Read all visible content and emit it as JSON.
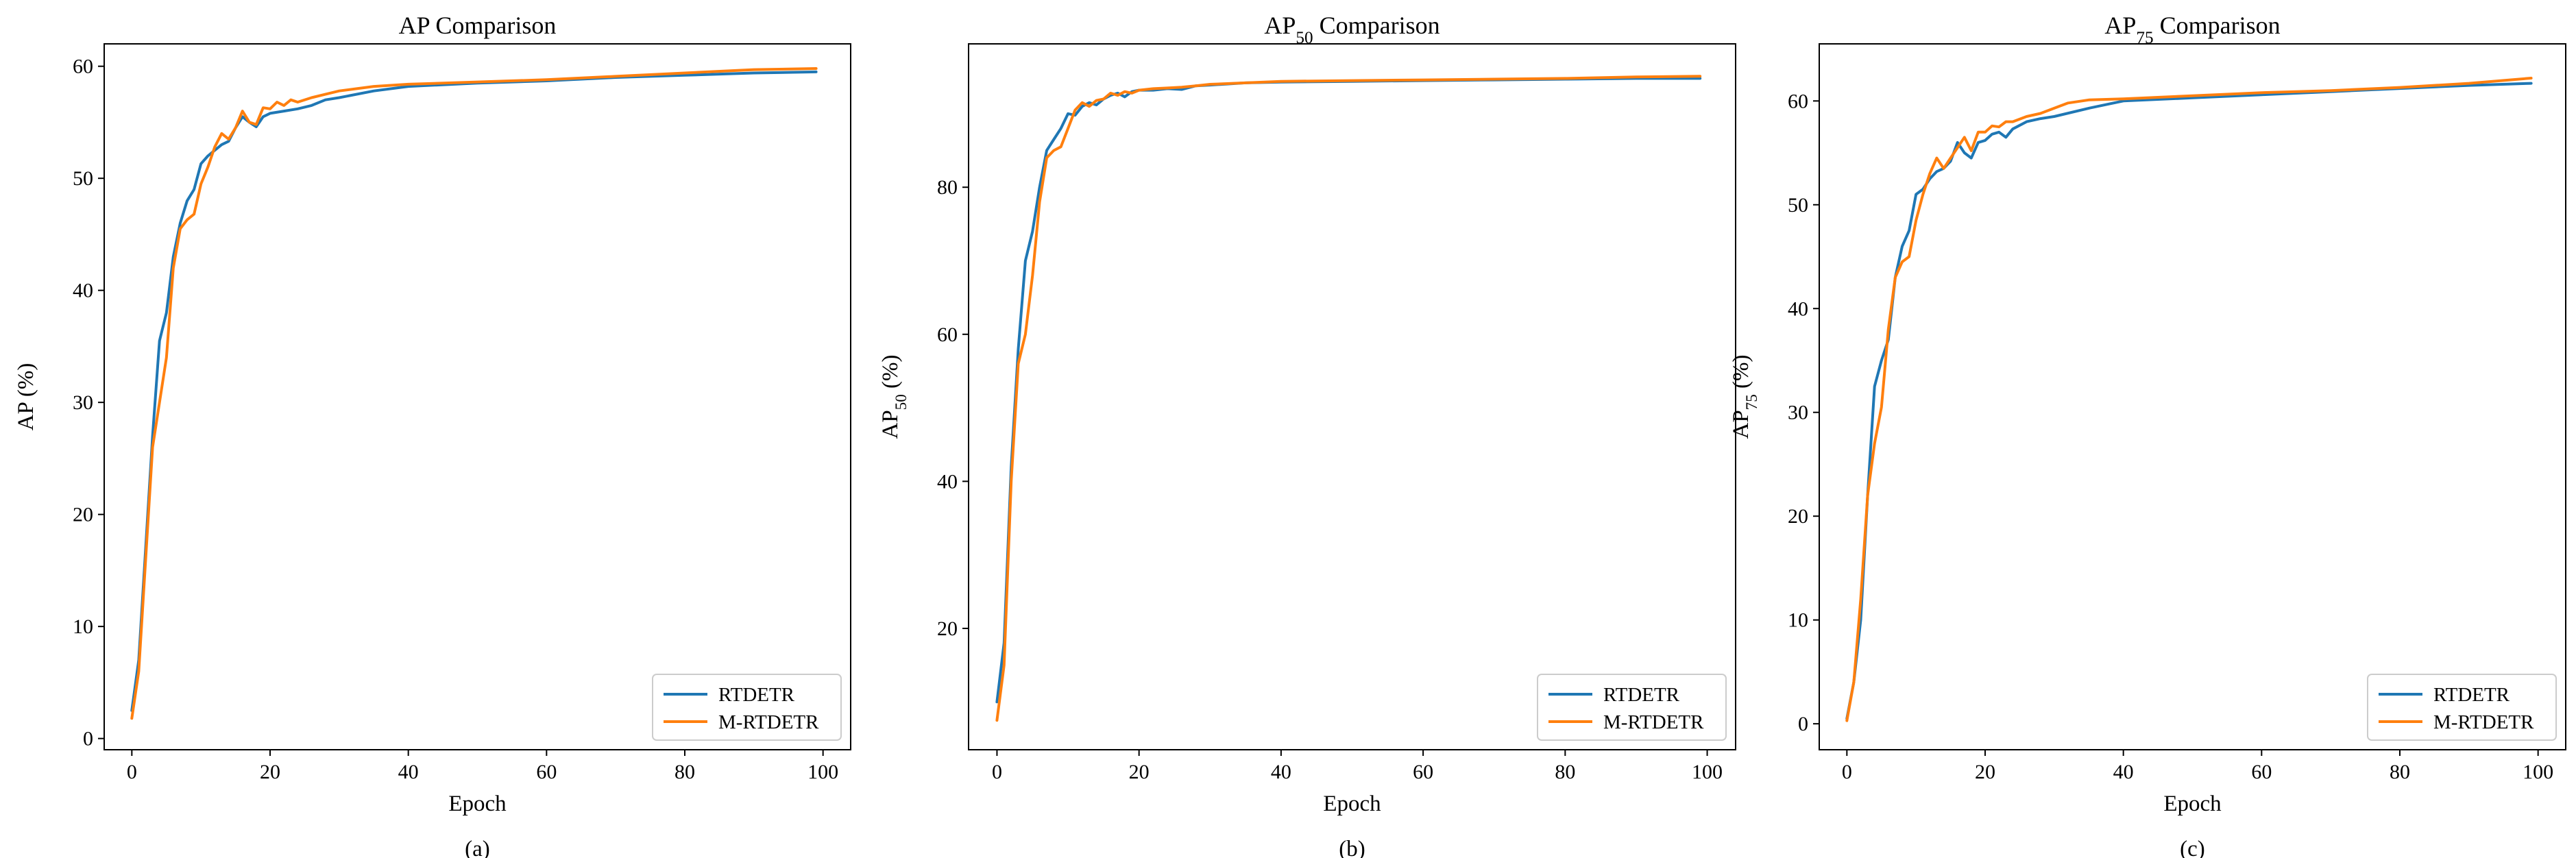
{
  "colors": {
    "rtdetr": "#1f77b4",
    "mrtdetr": "#ff7f0e"
  },
  "chart_data": [
    {
      "type": "line",
      "title": "AP Comparison",
      "title_main": "AP",
      "title_sub": "",
      "title_rest": " Comparison",
      "xlabel": "Epoch",
      "ylabel": "AP (%)",
      "ylabel_main": "AP",
      "ylabel_sub": "",
      "ylabel_rest": " (%)",
      "caption": "(a)",
      "xlim": [
        -4,
        104
      ],
      "ylim": [
        -1,
        62
      ],
      "xticks": [
        0,
        20,
        40,
        60,
        80,
        100
      ],
      "yticks": [
        0,
        10,
        20,
        30,
        40,
        50,
        60
      ],
      "legend": "lower right",
      "series": [
        {
          "name": "RTDETR",
          "color": "#1f77b4",
          "x": [
            0,
            1,
            2,
            3,
            4,
            5,
            6,
            7,
            8,
            9,
            10,
            11,
            12,
            13,
            14,
            15,
            16,
            17,
            18,
            19,
            20,
            22,
            24,
            26,
            28,
            30,
            35,
            40,
            50,
            60,
            70,
            80,
            90,
            99
          ],
          "y": [
            2.5,
            7,
            17,
            27,
            35.5,
            38,
            43,
            46,
            48,
            49,
            51.3,
            52,
            52.5,
            53,
            53.3,
            54.5,
            55.5,
            55,
            54.6,
            55.5,
            55.8,
            56,
            56.2,
            56.5,
            57,
            57.2,
            57.8,
            58.2,
            58.5,
            58.7,
            59,
            59.2,
            59.4,
            59.5
          ]
        },
        {
          "name": "M-RTDETR",
          "color": "#ff7f0e",
          "x": [
            0,
            1,
            2,
            3,
            4,
            5,
            6,
            7,
            8,
            9,
            10,
            11,
            12,
            13,
            14,
            15,
            16,
            17,
            18,
            19,
            20,
            21,
            22,
            23,
            24,
            26,
            28,
            30,
            35,
            40,
            50,
            60,
            70,
            80,
            90,
            99
          ],
          "y": [
            1.8,
            6,
            16,
            26,
            30,
            34,
            42,
            45.5,
            46.3,
            46.8,
            49.5,
            51,
            52.8,
            54,
            53.5,
            54.5,
            56,
            55,
            54.8,
            56.3,
            56.2,
            56.8,
            56.5,
            57,
            56.8,
            57.2,
            57.5,
            57.8,
            58.2,
            58.4,
            58.6,
            58.8,
            59.1,
            59.4,
            59.7,
            59.8
          ]
        }
      ]
    },
    {
      "type": "line",
      "title": "AP50 Comparison",
      "title_main": "AP",
      "title_sub": "50",
      "title_rest": " Comparison",
      "xlabel": "Epoch",
      "ylabel": "AP50 (%)",
      "ylabel_main": "AP",
      "ylabel_sub": "50",
      "ylabel_rest": " (%)",
      "caption": "(b)",
      "xlim": [
        -4,
        104
      ],
      "ylim": [
        3.5,
        99.5
      ],
      "xticks": [
        0,
        20,
        40,
        60,
        80,
        100
      ],
      "yticks": [
        20,
        40,
        60,
        80
      ],
      "legend": "lower right",
      "series": [
        {
          "name": "RTDETR",
          "color": "#1f77b4",
          "x": [
            0,
            1,
            2,
            3,
            4,
            5,
            6,
            7,
            8,
            9,
            10,
            11,
            12,
            13,
            14,
            15,
            16,
            17,
            18,
            19,
            20,
            22,
            24,
            26,
            28,
            30,
            35,
            40,
            50,
            60,
            70,
            80,
            90,
            99
          ],
          "y": [
            10,
            18,
            42,
            58,
            70,
            74,
            80,
            85,
            86.5,
            88,
            90,
            89.8,
            91,
            91.5,
            91.2,
            92,
            92.5,
            92.8,
            92.3,
            93,
            93.2,
            93.2,
            93.4,
            93.3,
            93.8,
            93.9,
            94.2,
            94.3,
            94.4,
            94.5,
            94.6,
            94.7,
            94.8,
            94.8
          ]
        },
        {
          "name": "M-RTDETR",
          "color": "#ff7f0e",
          "x": [
            0,
            1,
            2,
            3,
            4,
            5,
            6,
            7,
            8,
            9,
            10,
            11,
            12,
            13,
            14,
            15,
            16,
            17,
            18,
            19,
            20,
            22,
            24,
            26,
            28,
            30,
            35,
            40,
            50,
            60,
            70,
            80,
            90,
            99
          ],
          "y": [
            7.5,
            15,
            40,
            56,
            60,
            68,
            78,
            84,
            85,
            85.5,
            88,
            90.5,
            91.5,
            91,
            91.8,
            92,
            92.8,
            92.5,
            93,
            92.8,
            93.2,
            93.4,
            93.5,
            93.6,
            93.8,
            94,
            94.2,
            94.4,
            94.5,
            94.6,
            94.7,
            94.8,
            95,
            95.1
          ]
        }
      ]
    },
    {
      "type": "line",
      "title": "AP75 Comparison",
      "title_main": "AP",
      "title_sub": "75",
      "title_rest": " Comparison",
      "xlabel": "Epoch",
      "ylabel": "AP75 (%)",
      "ylabel_main": "AP",
      "ylabel_sub": "75",
      "ylabel_rest": " (%)",
      "caption": "(c)",
      "xlim": [
        -4,
        104
      ],
      "ylim": [
        -2.5,
        65.5
      ],
      "xticks": [
        0,
        20,
        40,
        60,
        80,
        100
      ],
      "yticks": [
        0,
        10,
        20,
        30,
        40,
        50,
        60
      ],
      "legend": "lower right",
      "series": [
        {
          "name": "RTDETR",
          "color": "#1f77b4",
          "x": [
            0,
            1,
            2,
            3,
            4,
            5,
            6,
            7,
            8,
            9,
            10,
            11,
            12,
            13,
            14,
            15,
            16,
            17,
            18,
            19,
            20,
            21,
            22,
            23,
            24,
            26,
            28,
            30,
            35,
            40,
            50,
            60,
            70,
            80,
            90,
            99
          ],
          "y": [
            0.5,
            4,
            10,
            22,
            32.5,
            35,
            37,
            43,
            46,
            47.5,
            51,
            51.5,
            52.5,
            53.2,
            53.5,
            54.2,
            56,
            55,
            54.5,
            56,
            56.2,
            56.8,
            57,
            56.5,
            57.3,
            58,
            58.3,
            58.5,
            59.3,
            60,
            60.3,
            60.6,
            60.9,
            61.2,
            61.5,
            61.7
          ]
        },
        {
          "name": "M-RTDETR",
          "color": "#ff7f0e",
          "x": [
            0,
            1,
            2,
            3,
            4,
            5,
            6,
            7,
            8,
            9,
            10,
            11,
            12,
            13,
            14,
            15,
            16,
            17,
            18,
            19,
            20,
            21,
            22,
            23,
            24,
            26,
            28,
            30,
            32,
            35,
            40,
            50,
            60,
            70,
            80,
            90,
            99
          ],
          "y": [
            0.3,
            4,
            12,
            22,
            27,
            30.5,
            38,
            43,
            44.5,
            45,
            48.5,
            51,
            53,
            54.5,
            53.5,
            54.5,
            55.5,
            56.5,
            55.2,
            57,
            57,
            57.6,
            57.5,
            58,
            58,
            58.5,
            58.8,
            59.3,
            59.8,
            60.1,
            60.2,
            60.5,
            60.8,
            61,
            61.3,
            61.7,
            62.2
          ]
        }
      ]
    }
  ]
}
